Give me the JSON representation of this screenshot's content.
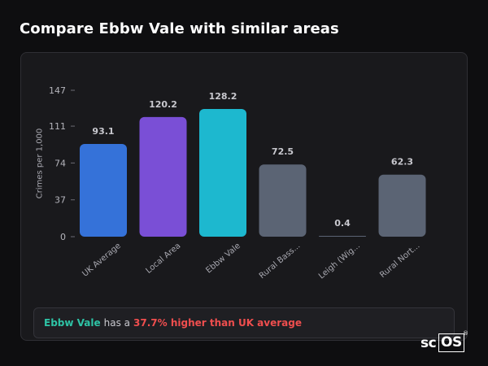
{
  "page": {
    "title": "Compare Ebbw Vale with similar areas"
  },
  "chart_data": {
    "type": "bar",
    "title": "",
    "xlabel": "",
    "ylabel": "Crimes per 1,000",
    "ylim": [
      0,
      147
    ],
    "yticks": [
      0,
      37,
      74,
      111,
      147
    ],
    "grid": false,
    "categories": [
      "UK Average",
      "Local Area",
      "Ebbw Vale",
      "Rural Bass...",
      "Leigh (Wig...",
      "Rural Nort..."
    ],
    "values": [
      93.1,
      120.2,
      128.2,
      72.5,
      0.4,
      62.3
    ],
    "value_labels": [
      "93.1",
      "120.2",
      "128.2",
      "72.5",
      "0.4",
      "62.3"
    ],
    "colors": [
      "#3572d9",
      "#7a4fd6",
      "#1db8cf",
      "#5b6474",
      "#5b6474",
      "#5b6474"
    ]
  },
  "summary": {
    "area": "Ebbw Vale",
    "connector": "has a",
    "highlight": "37.7% higher than UK average",
    "area_color": "#2ec4a6",
    "highlight_color": "#ef4e4e"
  },
  "brand": {
    "part1": "sc",
    "part2": "OS",
    "reg": "®"
  }
}
